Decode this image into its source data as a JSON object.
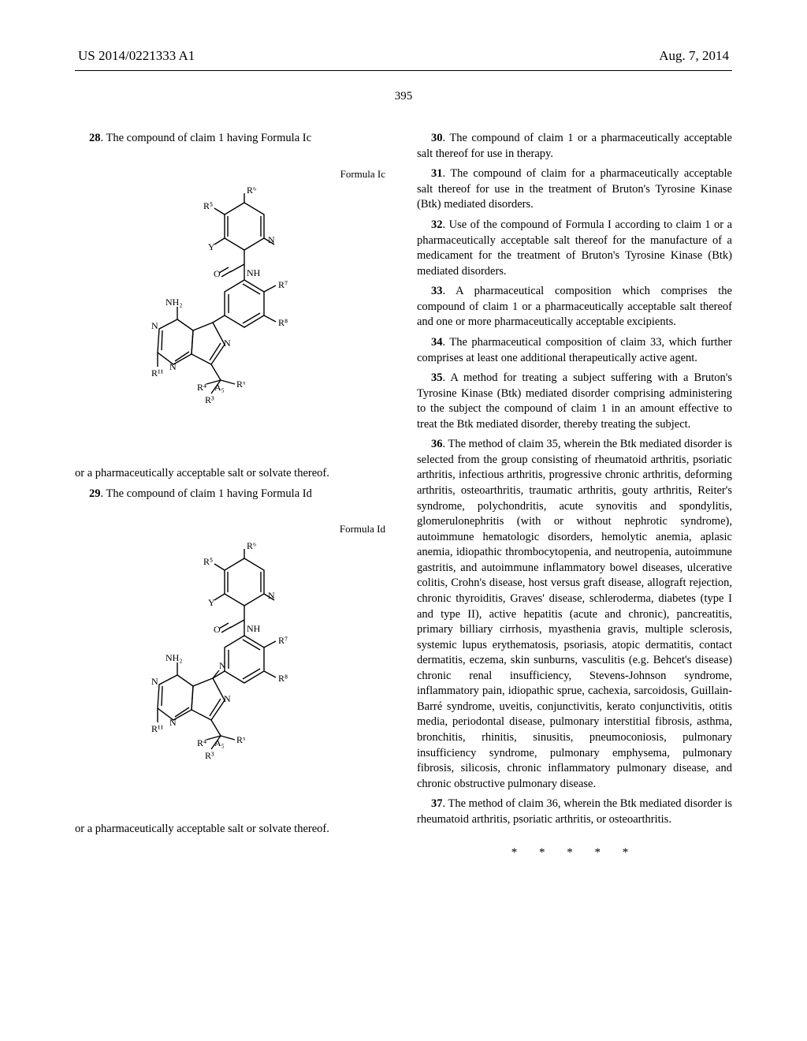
{
  "header": {
    "pub_number": "US 2014/0221333 A1",
    "pub_date": "Aug. 7, 2014"
  },
  "page_number": "395",
  "left_column": {
    "claim28_intro": "28",
    "claim28_text": ". The compound of claim 1 having Formula Ic",
    "formula1_label": "Formula Ic",
    "salt_line1": "or a pharmaceutically acceptable salt or solvate thereof.",
    "claim29_intro": "29",
    "claim29_text": ". The compound of claim 1 having Formula Id",
    "formula2_label": "Formula Id",
    "salt_line2": "or a pharmaceutically acceptable salt or solvate thereof.",
    "struct_labels": {
      "R3": "R³",
      "R4": "R⁴",
      "R5": "R⁵",
      "R6": "R⁶",
      "R7": "R⁷",
      "R8": "R⁸",
      "R11": "R¹¹",
      "Rx": "Rˣ",
      "A5": "A₅",
      "NH2": "NH₂",
      "NH": "NH",
      "N": "N",
      "O": "O",
      "Y": "Y"
    },
    "struct_style": {
      "stroke": "#000000",
      "stroke_width": 1.4,
      "font_size": 12,
      "font_family": "Times New Roman"
    }
  },
  "right_column": {
    "claims": [
      {
        "num": "30",
        "text": ". The compound of claim 1 or a pharmaceutically acceptable salt thereof for use in therapy."
      },
      {
        "num": "31",
        "text": ". The compound of claim for a pharmaceutically acceptable salt thereof for use in the treatment of Bruton's Tyrosine Kinase (Btk) mediated disorders."
      },
      {
        "num": "32",
        "text": ". Use of the compound of Formula I according to claim 1 or a pharmaceutically acceptable salt thereof for the manufacture of a medicament for the treatment of Bruton's Tyrosine Kinase (Btk) mediated disorders."
      },
      {
        "num": "33",
        "text": ". A pharmaceutical composition which comprises the compound of claim 1 or a pharmaceutically acceptable salt thereof and one or more pharmaceutically acceptable excipients."
      },
      {
        "num": "34",
        "text": ". The pharmaceutical composition of claim 33, which further comprises at least one additional therapeutically active agent."
      },
      {
        "num": "35",
        "text": ". A method for treating a subject suffering with a Bruton's Tyrosine Kinase (Btk) mediated disorder comprising administering to the subject the compound of claim 1 in an amount effective to treat the Btk mediated disorder, thereby treating the subject."
      },
      {
        "num": "36",
        "text": ". The method of claim 35, wherein the Btk mediated disorder is selected from the group consisting of rheumatoid arthritis, psoriatic arthritis, infectious arthritis, progressive chronic arthritis, deforming arthritis, osteoarthritis, traumatic arthritis, gouty arthritis, Reiter's syndrome, polychondritis, acute synovitis and spondylitis, glomerulonephritis (with or without nephrotic syndrome), autoimmune hematologic disorders, hemolytic anemia, aplasic anemia, idiopathic thrombocytopenia, and neutropenia, autoimmune gastritis, and autoimmune inflammatory bowel diseases, ulcerative colitis, Crohn's disease, host versus graft disease, allograft rejection, chronic thyroiditis, Graves' disease, schleroderma, diabetes (type I and type II), active hepatitis (acute and chronic), pancreatitis, primary billiary cirrhosis, myasthenia gravis, multiple sclerosis, systemic lupus erythematosis, psoriasis, atopic dermatitis, contact dermatitis, eczema, skin sunburns, vasculitis (e.g. Behcet's disease) chronic renal insufficiency, Stevens-Johnson syndrome, inflammatory pain, idiopathic sprue, cachexia, sarcoidosis, Guillain-Barré syndrome, uveitis, conjunctivitis, kerato conjunctivitis, otitis media, periodontal disease, pulmonary interstitial fibrosis, asthma, bronchitis, rhinitis, sinusitis, pneumoconiosis, pulmonary insufficiency syndrome, pulmonary emphysema, pulmonary fibrosis, silicosis, chronic inflammatory pulmonary disease, and chronic obstructive pulmonary disease."
      },
      {
        "num": "37",
        "text": ". The method of claim 36, wherein the Btk mediated disorder is rheumatoid arthritis, psoriatic arthritis, or osteoarthritis."
      }
    ],
    "end_marks": "*   *   *   *   *"
  }
}
